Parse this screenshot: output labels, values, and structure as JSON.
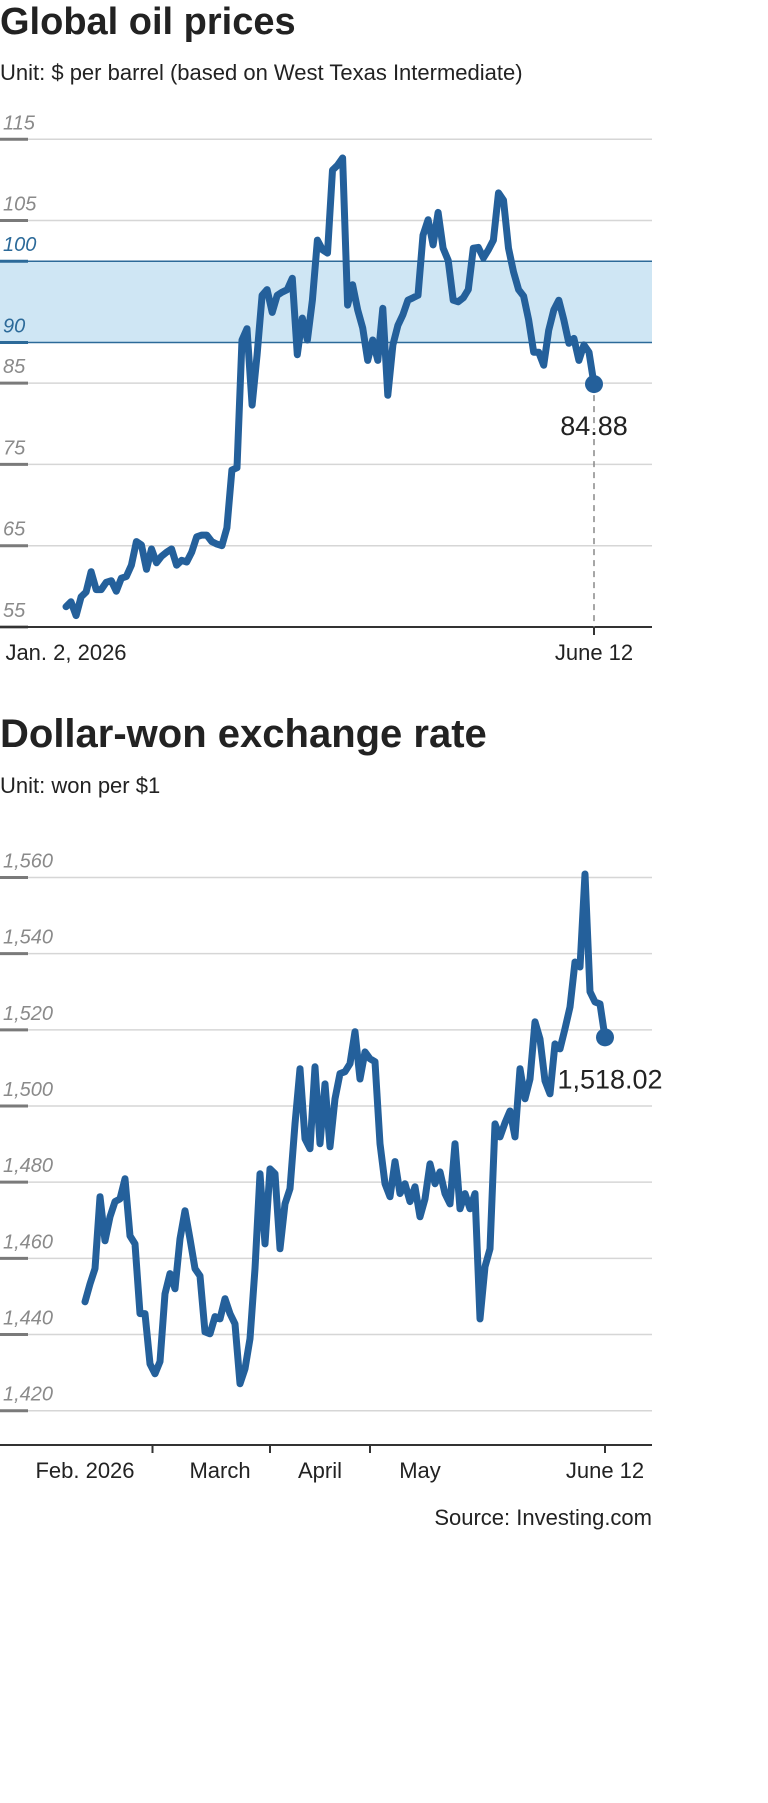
{
  "chart_data": [
    {
      "type": "line",
      "title": "Global oil prices",
      "subtitle": "Unit: $ per barrel (based on West Texas Intermediate)",
      "categories": [
        "Jan. 2, 2026",
        null,
        null,
        null,
        null,
        null,
        null,
        null,
        null,
        null,
        null,
        null,
        null,
        null,
        null,
        null,
        null,
        null,
        null,
        null,
        null,
        null,
        null,
        null,
        null,
        null,
        null,
        null,
        null,
        null,
        null,
        null,
        null,
        null,
        null,
        null,
        null,
        null,
        null,
        null,
        null,
        null,
        null,
        null,
        null,
        null,
        null,
        null,
        null,
        null,
        null,
        null,
        null,
        null,
        null,
        null,
        null,
        null,
        null,
        null,
        null,
        null,
        null,
        null,
        null,
        null,
        null,
        null,
        null,
        null,
        null,
        null,
        null,
        null,
        null,
        null,
        null,
        null,
        null,
        null,
        null,
        null,
        null,
        null,
        null,
        null,
        null,
        null,
        null,
        null,
        null,
        null,
        null,
        null,
        null,
        null,
        null,
        null,
        null,
        null,
        null,
        null,
        null,
        null,
        null,
        "June 12"
      ],
      "series": [
        {
          "color": "#24609b",
          "values": [
            57.5,
            58.1,
            56.4,
            58.7,
            59.3,
            61.8,
            59.6,
            59.6,
            60.5,
            60.7,
            59.4,
            61.0,
            61.2,
            62.6,
            65.5,
            65.1,
            62.1,
            64.6,
            62.9,
            63.7,
            64.2,
            64.6,
            62.6,
            63.2,
            63.0,
            64.2,
            66.1,
            66.3,
            66.3,
            65.5,
            65.2,
            65.0,
            67.2,
            74.3,
            74.6,
            90.3,
            91.7,
            82.3,
            88.5,
            95.8,
            96.5,
            93.7,
            95.8,
            96.2,
            96.5,
            97.9,
            88.5,
            93.0,
            90.3,
            95.2,
            102.6,
            101.4,
            101.0,
            111.2,
            111.8,
            112.7,
            94.6,
            97.1,
            94.0,
            91.8,
            87.8,
            90.3,
            87.8,
            94.2,
            83.5,
            89.7,
            92.1,
            93.4,
            95.2,
            95.5,
            95.8,
            103.2,
            105.1,
            102.0,
            106.0,
            101.6,
            100.1,
            95.2,
            95.0,
            95.5,
            96.5,
            101.6,
            101.7,
            100.4,
            101.4,
            102.6,
            108.4,
            107.5,
            101.6,
            98.7,
            96.5,
            95.7,
            92.8,
            88.8,
            88.8,
            87.2,
            91.5,
            94.0,
            95.2,
            92.8,
            89.9,
            90.5,
            87.8,
            89.7,
            88.8,
            84.88
          ]
        }
      ],
      "ylim": [
        55,
        117
      ],
      "yticks": [
        55,
        65,
        75,
        85,
        90,
        100,
        105,
        115
      ],
      "band": [
        90,
        100
      ],
      "band_color": "#cfe6f4",
      "band_edge_color": "#2c6a99",
      "grid": true,
      "end_marker": true,
      "end_label": true,
      "drop_line": true
    },
    {
      "type": "line",
      "title": "Dollar-won exchange rate",
      "subtitle": "Unit: won per $1",
      "categories": [
        "Feb. 2026",
        null,
        null,
        null,
        null,
        null,
        null,
        null,
        null,
        null,
        null,
        null,
        null,
        null,
        null,
        null,
        null,
        null,
        null,
        null,
        null,
        null,
        null,
        null,
        null,
        null,
        null,
        "March",
        null,
        null,
        null,
        null,
        null,
        null,
        null,
        null,
        null,
        null,
        null,
        null,
        null,
        null,
        null,
        null,
        null,
        null,
        null,
        "April",
        null,
        null,
        null,
        null,
        null,
        null,
        null,
        null,
        null,
        null,
        null,
        null,
        null,
        null,
        null,
        null,
        null,
        null,
        null,
        "May",
        null,
        null,
        null,
        null,
        null,
        null,
        null,
        null,
        null,
        null,
        null,
        null,
        null,
        null,
        null,
        null,
        null,
        null,
        null,
        null,
        null,
        null,
        null,
        null,
        null,
        null,
        null,
        null,
        null,
        null,
        null,
        null,
        null,
        null,
        null,
        null,
        "June 12"
      ],
      "series": [
        {
          "color": "#24609b",
          "values": [
            1448.6,
            1453.3,
            1457.3,
            1476.2,
            1464.6,
            1470.9,
            1474.9,
            1475.6,
            1480.9,
            1465.9,
            1463.8,
            1445.5,
            1445.5,
            1432.3,
            1429.7,
            1432.9,
            1450.7,
            1456.0,
            1452.0,
            1465.1,
            1472.5,
            1465.1,
            1457.3,
            1455.4,
            1440.7,
            1440.2,
            1444.7,
            1444.1,
            1449.4,
            1445.5,
            1442.8,
            1427.1,
            1431.0,
            1438.9,
            1457.3,
            1482.2,
            1463.8,
            1483.5,
            1482.2,
            1462.5,
            1474.3,
            1478.3,
            1495.3,
            1509.8,
            1491.4,
            1488.8,
            1510.3,
            1490.1,
            1505.8,
            1489.3,
            1501.9,
            1508.5,
            1509.0,
            1511.1,
            1519.5,
            1507.1,
            1514.2,
            1512.4,
            1511.6,
            1490.1,
            1479.6,
            1476.2,
            1485.4,
            1477.0,
            1479.6,
            1474.9,
            1478.8,
            1470.9,
            1475.6,
            1484.8,
            1479.6,
            1482.7,
            1477.0,
            1474.3,
            1490.1,
            1473.0,
            1477.0,
            1473.0,
            1477.0,
            1444.1,
            1457.8,
            1462.5,
            1495.3,
            1491.9,
            1495.6,
            1498.7,
            1491.9,
            1509.8,
            1501.9,
            1507.1,
            1522.1,
            1517.6,
            1506.6,
            1503.2,
            1516.3,
            1515.0,
            1520.3,
            1526.0,
            1537.8,
            1536.5,
            1560.9,
            1530.0,
            1527.3,
            1526.8,
            1518.02
          ],
          "value_labels": [
            null,
            null,
            null,
            null,
            null,
            null,
            null,
            null,
            null,
            null,
            null,
            null,
            null,
            null,
            null,
            null,
            null,
            null,
            null,
            null,
            null,
            null,
            null,
            null,
            null,
            null,
            null,
            null,
            null,
            null,
            null,
            null,
            null,
            null,
            null,
            null,
            null,
            null,
            null,
            null,
            null,
            null,
            null,
            null,
            null,
            null,
            null,
            null,
            null,
            null,
            null,
            null,
            null,
            null,
            null,
            null,
            null,
            null,
            null,
            null,
            null,
            null,
            null,
            null,
            null,
            null,
            null,
            null,
            null,
            null,
            null,
            null,
            null,
            null,
            null,
            null,
            null,
            null,
            null,
            null,
            null,
            null,
            null,
            null,
            null,
            null,
            null,
            null,
            null,
            null,
            null,
            null,
            null,
            null,
            null,
            null,
            null,
            null,
            null,
            null,
            null,
            null,
            null,
            null,
            "1,518.02"
          ]
        }
      ],
      "ylim": [
        1411,
        1568
      ],
      "yticks": [
        {
          "value": 1420,
          "label": "1,420"
        },
        {
          "value": 1440,
          "label": "1,440"
        },
        {
          "value": 1460,
          "label": "1,460"
        },
        {
          "value": 1480,
          "label": "1,480"
        },
        {
          "value": 1500,
          "label": "1,500"
        },
        {
          "value": 1520,
          "label": "1,520"
        },
        {
          "value": 1540,
          "label": "1,540"
        },
        {
          "value": 1560,
          "label": "1,560"
        }
      ],
      "grid": true,
      "end_marker": true,
      "x_separators": true
    }
  ],
  "source": "Source: Investing.com"
}
